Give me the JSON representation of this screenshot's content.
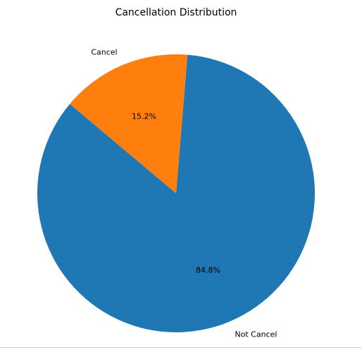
{
  "chart_data": {
    "type": "pie",
    "title": "Cancellation Distribution",
    "slices": [
      {
        "label": "Not Cancel",
        "value": 84.8,
        "pct_label": "84.8%",
        "color": "#1f77b4"
      },
      {
        "label": "Cancel",
        "value": 15.2,
        "pct_label": "15.2%",
        "color": "#ff7f0e"
      }
    ],
    "start_angle_deg": 140,
    "direction": "counterclockwise"
  }
}
